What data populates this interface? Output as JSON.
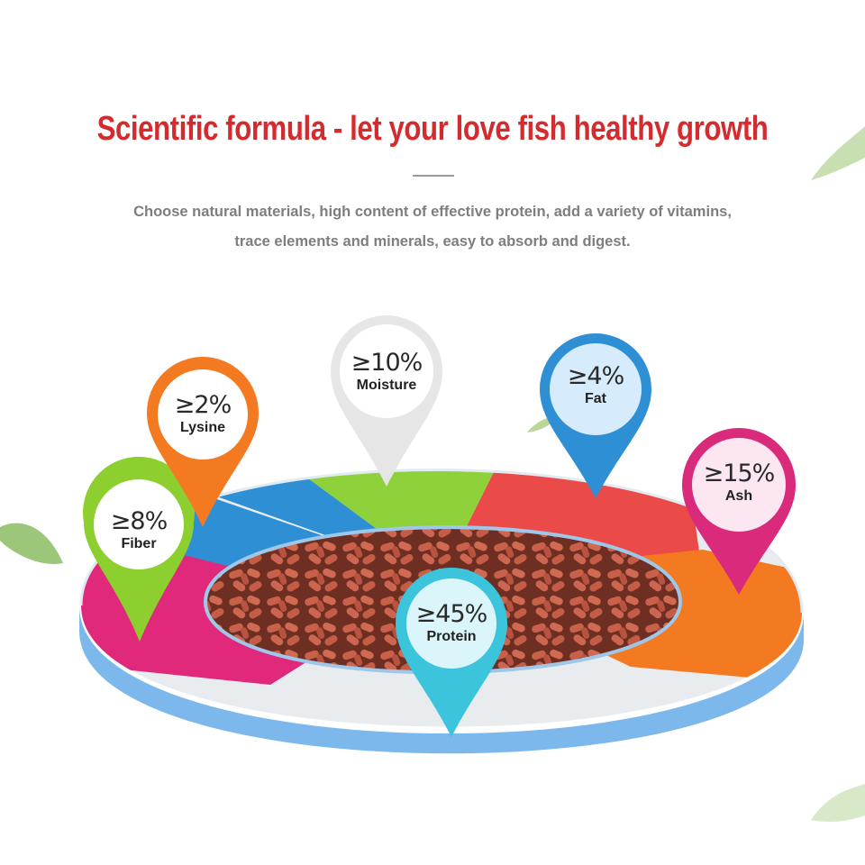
{
  "headline": "Scientific formula - let your love fish healthy growth",
  "description": {
    "line1": "Choose natural materials, high content of effective protein, add a variety of vitamins,",
    "line2": "trace elements and minerals, easy to absorb and digest."
  },
  "nutrients": [
    {
      "id": "fiber",
      "value": "≥8%",
      "label": "Fiber",
      "color": "#8ccf2f"
    },
    {
      "id": "lysine",
      "value": "≥2%",
      "label": "Lysine",
      "color": "#f47a22"
    },
    {
      "id": "moisture",
      "value": "≥10%",
      "label": "Moisture",
      "color": "#e4e4e4"
    },
    {
      "id": "fat",
      "value": "≥4%",
      "label": "Fat",
      "color": "#2f8fd4"
    },
    {
      "id": "ash",
      "value": "≥15%",
      "label": "Ash",
      "color": "#d92a7c"
    },
    {
      "id": "protein",
      "value": "≥45%",
      "label": "Protein",
      "color": "#3cc4dc"
    }
  ],
  "ring_colors": {
    "magenta": "#e0297a",
    "blue": "#2f8fd4",
    "green": "#8ed13a",
    "red": "#ea4b48",
    "orange": "#f47a22",
    "light": "#e9ecef",
    "rim": "#6fb0e8"
  }
}
